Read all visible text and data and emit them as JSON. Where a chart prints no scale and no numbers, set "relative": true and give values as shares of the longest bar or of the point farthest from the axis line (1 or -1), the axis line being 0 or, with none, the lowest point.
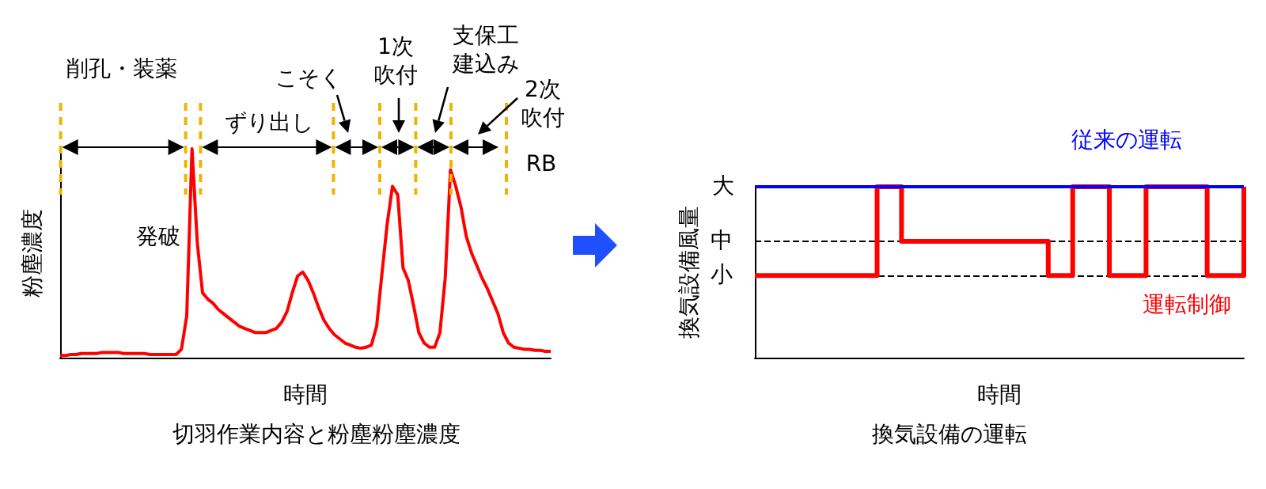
{
  "chart_data": [
    {
      "type": "line",
      "relative": true,
      "title": "切羽作業内容と粉塵粉塵濃度",
      "xlabel": "時間",
      "ylabel": "粉塵濃度",
      "legend": false,
      "categories": [
        null,
        null,
        null,
        null,
        null,
        null,
        null,
        null,
        null,
        null,
        null,
        null,
        null,
        null,
        null,
        null,
        null,
        null,
        null,
        null,
        null,
        null,
        null,
        null,
        null,
        null,
        null,
        null,
        null,
        null,
        null,
        null,
        null,
        null,
        null,
        null,
        null,
        null,
        null,
        null,
        null,
        null,
        null,
        null,
        null,
        null,
        null,
        null,
        null,
        null,
        null,
        null,
        null,
        null,
        null,
        null,
        null,
        null,
        null,
        null,
        null,
        null,
        null,
        null,
        null,
        null,
        null,
        null,
        null,
        null,
        null,
        null,
        null,
        null,
        null,
        null,
        null,
        null,
        null,
        null,
        null,
        null,
        null,
        null,
        null,
        null,
        null,
        null,
        null,
        null,
        null,
        null,
        null,
        null
      ],
      "series": [
        {
          "color": "#ff0000",
          "values": [
            0.01,
            0.01,
            0.015,
            0.015,
            0.02,
            0.02,
            0.02,
            0.02,
            0.025,
            0.025,
            0.025,
            0.025,
            0.02,
            0.02,
            0.02,
            0.02,
            0.02,
            0.015,
            0.015,
            0.015,
            0.015,
            0.015,
            0.015,
            0.04,
            0.2,
            1,
            0.55,
            0.31,
            0.28,
            0.26,
            0.23,
            0.21,
            0.19,
            0.17,
            0.15,
            0.14,
            0.13,
            0.12,
            0.12,
            0.12,
            0.13,
            0.14,
            0.17,
            0.22,
            0.31,
            0.39,
            0.41,
            0.37,
            0.31,
            0.24,
            0.18,
            0.14,
            0.11,
            0.09,
            0.07,
            0.06,
            0.05,
            0.045,
            0.05,
            0.06,
            0.15,
            0.4,
            0.64,
            0.82,
            0.78,
            0.43,
            0.37,
            0.25,
            0.12,
            0.07,
            0.05,
            0.05,
            0.12,
            0.38,
            0.9,
            0.82,
            0.72,
            0.58,
            0.5,
            0.44,
            0.38,
            0.33,
            0.27,
            0.21,
            0.12,
            0.07,
            0.05,
            0.045,
            0.04,
            0.04,
            0.035,
            0.035,
            0.03,
            0.03
          ]
        }
      ],
      "annotations": [
        "削孔・装薬",
        "発破",
        "ずり出し",
        "こそく",
        "1次吹付",
        "支保工建込み",
        "2次吹付",
        "RB"
      ]
    },
    {
      "type": "line",
      "relative": true,
      "title": "換気設備の運転",
      "xlabel": "時間",
      "ylabel": "換気設備風量",
      "legend": false,
      "categories": [
        null,
        null,
        null,
        null,
        null,
        null,
        null,
        null,
        null,
        null,
        null,
        null,
        null,
        null,
        null,
        null,
        null,
        null,
        null,
        null,
        null,
        null,
        null,
        null,
        null,
        null,
        null,
        null,
        null,
        null,
        null,
        null,
        null,
        null,
        null,
        null,
        null,
        null,
        null,
        null,
        null
      ],
      "annotations": [
        "大"
      ],
      "ref_lines": [
        {
          "axis": "y",
          "value": 0.68,
          "label": "中",
          "color": "#000000",
          "line_style": "dashed"
        },
        {
          "axis": "y",
          "value": 0.48,
          "label": "小",
          "color": "#000000",
          "line_style": "dashed"
        }
      ],
      "series": [
        {
          "name": "従来の運転",
          "color": "#0000ff",
          "values": [
            1,
            1,
            1,
            1,
            1,
            1,
            1,
            1,
            1,
            1,
            1,
            1,
            1,
            1,
            1,
            1,
            1,
            1,
            1,
            1,
            1,
            1,
            1,
            1,
            1,
            1,
            1,
            1,
            1,
            1,
            1,
            1,
            1,
            1,
            1,
            1,
            1,
            1,
            1,
            1,
            1
          ]
        },
        {
          "name": "運転制御",
          "type": "step",
          "color": "#ff0000",
          "values": [
            0.48,
            0.48,
            0.48,
            0.48,
            0.48,
            0.48,
            0.48,
            0.48,
            0.48,
            0.48,
            1,
            1,
            0.68,
            0.68,
            0.68,
            0.68,
            0.68,
            0.68,
            0.68,
            0.68,
            0.68,
            0.68,
            0.68,
            0.68,
            0.48,
            0.48,
            1,
            1,
            1,
            0.48,
            0.48,
            0.48,
            1,
            1,
            1,
            1,
            1,
            0.48,
            0.48,
            0.48,
            1
          ]
        }
      ]
    }
  ]
}
